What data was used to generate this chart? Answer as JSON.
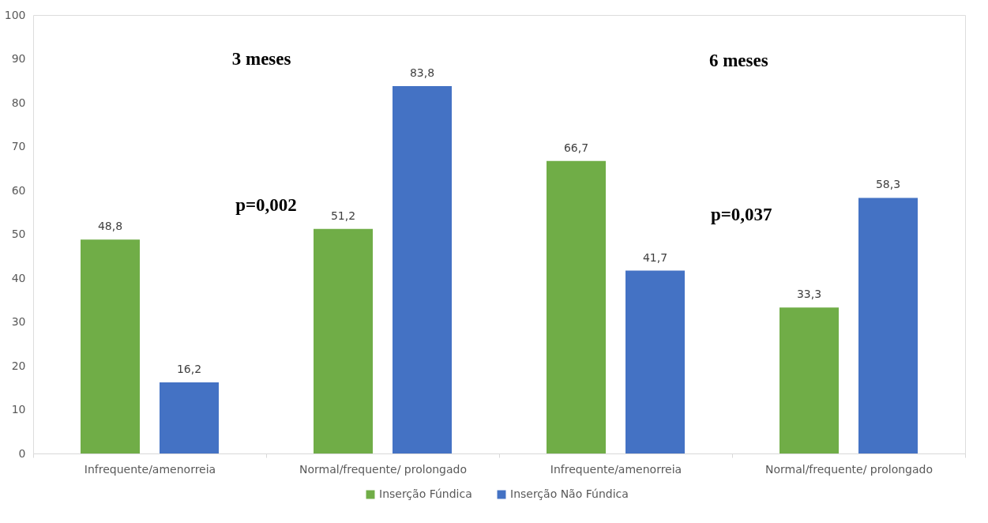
{
  "chart_data": {
    "type": "bar",
    "categories": [
      "Infrequente/amenorreia",
      "Normal/frequente/ prolongado",
      "Infrequente/amenorreia",
      "Normal/frequente/ prolongado"
    ],
    "series": [
      {
        "name": "Inserção Fúndica",
        "color": "#70ad47",
        "values": [
          48.8,
          51.2,
          66.7,
          33.3
        ],
        "value_labels": [
          "48,8",
          "51,2",
          "66,7",
          "33,3"
        ]
      },
      {
        "name": "Inserção Não Fúndica",
        "color": "#4472c4",
        "values": [
          16.2,
          83.8,
          41.7,
          58.3
        ],
        "value_labels": [
          "16,2",
          "83,8",
          "41,7",
          "58,3"
        ]
      }
    ],
    "ylim": [
      0,
      100
    ],
    "yticks": [
      0,
      10,
      20,
      30,
      40,
      50,
      60,
      70,
      80,
      90,
      100
    ],
    "grid": false,
    "legend": "bottom",
    "annotations": [
      "3 meses",
      "p=0,002",
      "6 meses",
      "p=0,037"
    ]
  }
}
